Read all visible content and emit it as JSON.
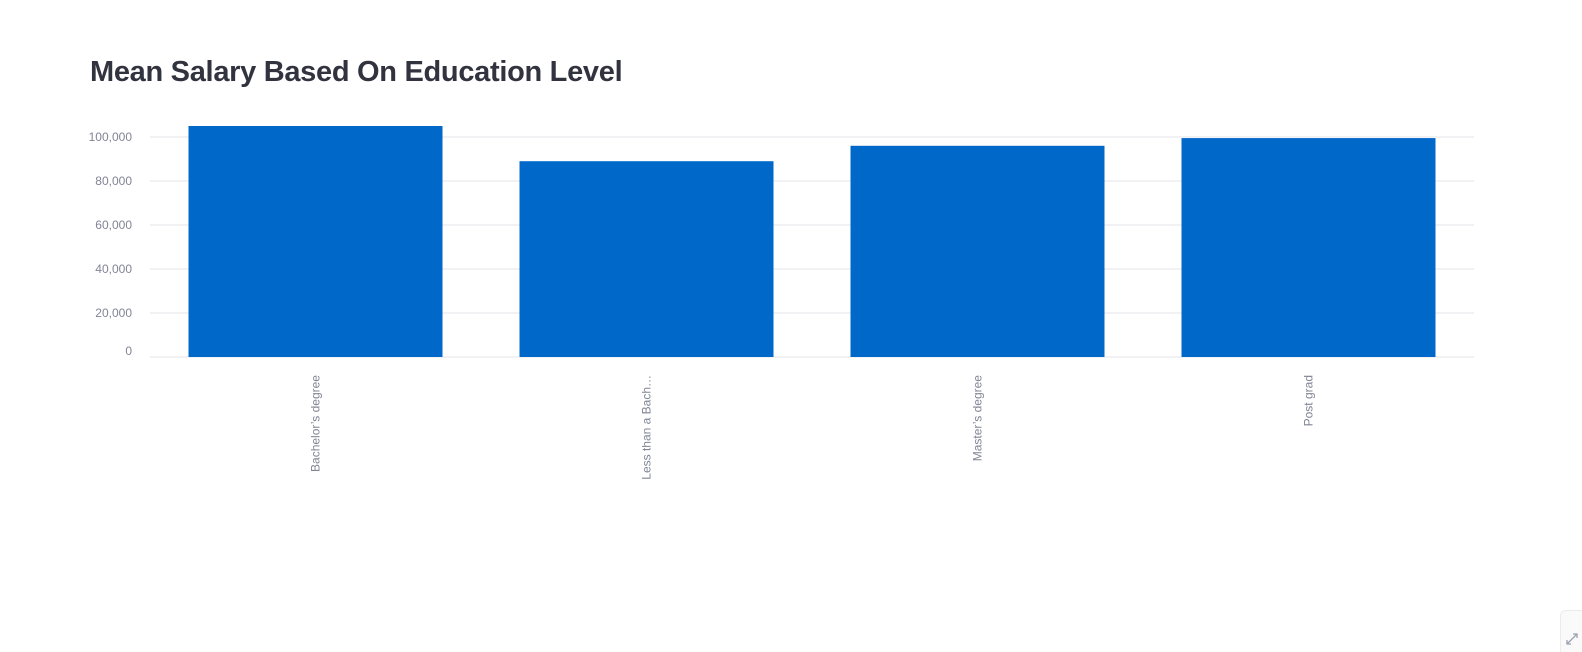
{
  "chart_data": {
    "type": "bar",
    "title": "Mean Salary Based On Education Level",
    "xlabel": "",
    "ylabel": "",
    "categories": [
      "Bachelor’s degree",
      "Less than a Bach…",
      "Master’s degree",
      "Post grad"
    ],
    "values": [
      105000,
      89000,
      96000,
      99500
    ],
    "ylim": [
      0,
      100000
    ],
    "yticks": [
      0,
      20000,
      40000,
      60000,
      80000,
      100000
    ],
    "ytick_labels": [
      "0",
      "20,000",
      "40,000",
      "60,000",
      "80,000",
      "100,000"
    ],
    "grid": true,
    "legend": "none",
    "bar_color": "#0068c9",
    "grid_color": "#e6e6ea",
    "label_color": "#808495"
  },
  "colors": {
    "title": "#31333f",
    "background": "#ffffff"
  },
  "icons": {
    "corner": "expand-icon"
  }
}
